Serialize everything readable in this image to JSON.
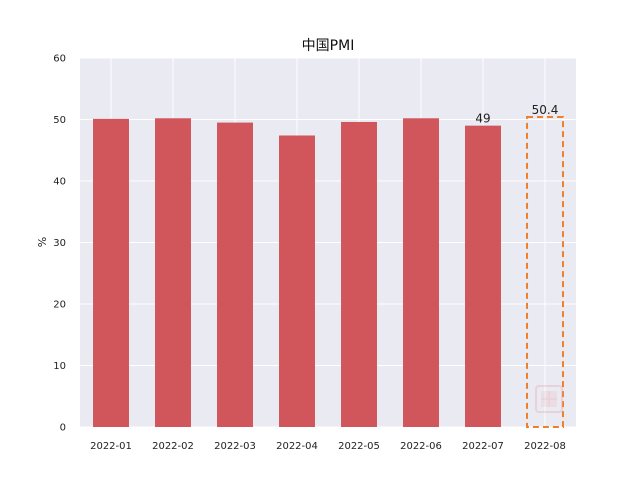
{
  "chart_data": {
    "type": "bar",
    "title": "中国PMI",
    "ylabel": "%",
    "xlabel": "",
    "ylim": [
      0,
      60
    ],
    "yticks": [
      0,
      10,
      20,
      30,
      40,
      50,
      60
    ],
    "categories": [
      "2022-01",
      "2022-02",
      "2022-03",
      "2022-04",
      "2022-05",
      "2022-06",
      "2022-07",
      "2022-08"
    ],
    "values": [
      50.1,
      50.2,
      49.5,
      47.4,
      49.6,
      50.2,
      49.0,
      50.4
    ],
    "bar_color": "#d1565b",
    "highlight": {
      "category": "2022-08",
      "value": 50.4,
      "label": "50.4",
      "style": "dashed-outline",
      "color": "#f07f2a"
    },
    "data_labels": [
      {
        "category": "2022-07",
        "text": "49"
      },
      {
        "category": "2022-08",
        "text": "50.4"
      }
    ],
    "grid": true,
    "background": "#eaeaf2"
  }
}
